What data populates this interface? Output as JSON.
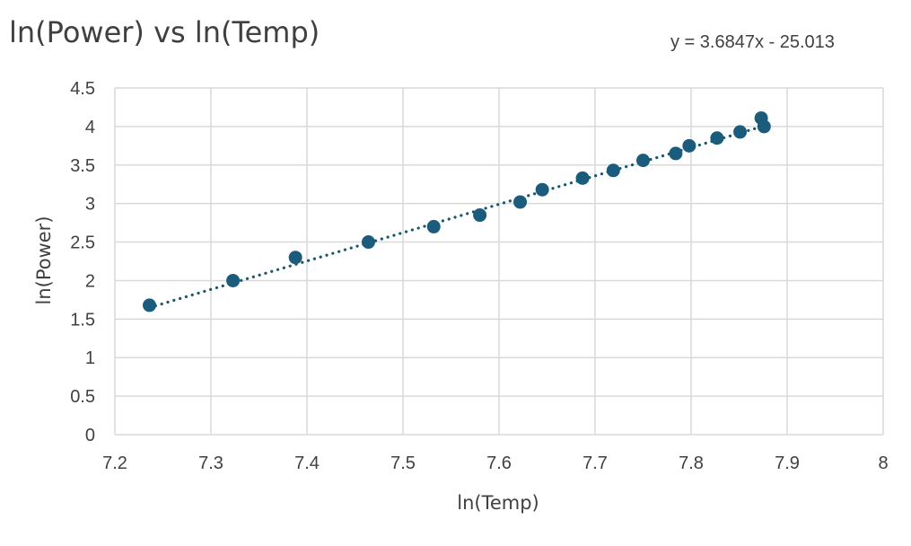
{
  "chart_data": {
    "type": "scatter",
    "title": "ln(Power) vs ln(Temp)",
    "xlabel": "ln(Temp)",
    "ylabel": "ln(Power)",
    "xlim": [
      7.2,
      8
    ],
    "ylim": [
      0,
      4.5
    ],
    "xticks": [
      "7.2",
      "7.3",
      "7.4",
      "7.5",
      "7.6",
      "7.7",
      "7.8",
      "7.9",
      "8"
    ],
    "yticks": [
      "0",
      "0.5",
      "1",
      "1.5",
      "2",
      "2.5",
      "3",
      "3.5",
      "4",
      "4.5"
    ],
    "grid": true,
    "legend": "none",
    "trendline": {
      "type": "linear",
      "style": "dotted",
      "slope": 3.6847,
      "intercept": -25.013,
      "equation": "y = 3.6847x - 25.013"
    },
    "series": [
      {
        "color": "#1b5c7c",
        "points": [
          {
            "x": 7.236,
            "y": 1.68
          },
          {
            "x": 7.323,
            "y": 2.0
          },
          {
            "x": 7.388,
            "y": 2.3
          },
          {
            "x": 7.464,
            "y": 2.5
          },
          {
            "x": 7.532,
            "y": 2.7
          },
          {
            "x": 7.58,
            "y": 2.85
          },
          {
            "x": 7.622,
            "y": 3.02
          },
          {
            "x": 7.645,
            "y": 3.18
          },
          {
            "x": 7.687,
            "y": 3.33
          },
          {
            "x": 7.719,
            "y": 3.43
          },
          {
            "x": 7.75,
            "y": 3.56
          },
          {
            "x": 7.784,
            "y": 3.65
          },
          {
            "x": 7.798,
            "y": 3.75
          },
          {
            "x": 7.827,
            "y": 3.85
          },
          {
            "x": 7.851,
            "y": 3.93
          },
          {
            "x": 7.873,
            "y": 4.11
          },
          {
            "x": 7.876,
            "y": 4.0
          }
        ]
      }
    ]
  }
}
